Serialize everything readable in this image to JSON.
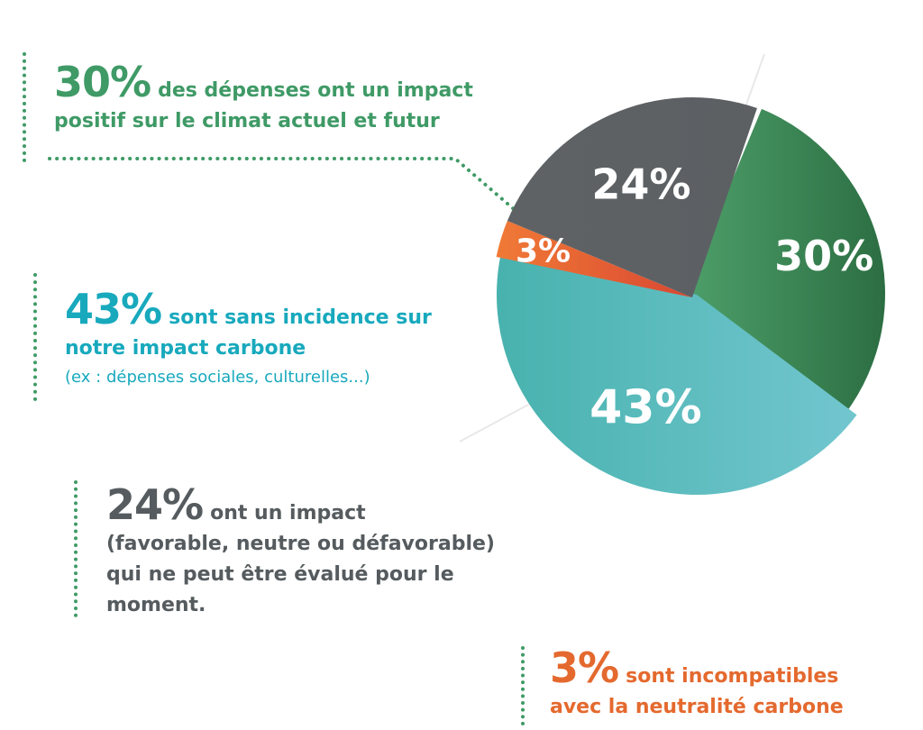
{
  "chart_data": {
    "type": "pie",
    "slices": [
      {
        "label": "30%",
        "value": 30,
        "color": "#3b8f5e"
      },
      {
        "label": "43%",
        "value": 43,
        "color": "#4fb7bd"
      },
      {
        "label": "3%",
        "value": 3,
        "color": "#e15b34"
      },
      {
        "label": "24%",
        "value": 24,
        "color": "#5f6366"
      }
    ]
  },
  "callouts": {
    "c30": {
      "pct": "30%",
      "line1": "des dépenses ont un impact",
      "line2": "positif sur le climat actuel et futur"
    },
    "c43": {
      "pct": "43%",
      "line1": "sont sans incidence sur",
      "line2": "notre impact carbone",
      "note": "(ex : dépenses sociales, culturelles...)"
    },
    "c24": {
      "pct": "24%",
      "line1": "ont un impact",
      "line2": "(favorable, neutre ou défavorable)",
      "line3": "qui ne peut être évalué pour le",
      "line4": "moment."
    },
    "c3": {
      "pct": "3%",
      "line1": "sont incompatibles",
      "line2": "avec la neutralité carbone"
    }
  }
}
